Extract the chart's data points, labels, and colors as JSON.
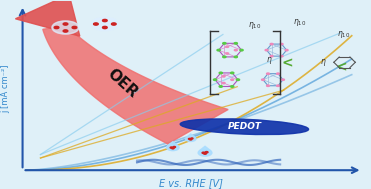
{
  "bg_color": "#dff0f8",
  "axis_color": "#2255aa",
  "ylabel": "j [mA cm⁻²]",
  "xlabel": "E vs. RHE [V]",
  "ylabel_color": "#3388cc",
  "xlabel_color": "#3388cc",
  "oer_text": "OER",
  "pedot_text": "PEDOT",
  "curve1_color": "#66aadd",
  "curve2_color": "#ddaa22",
  "arrow_fill": "#f07070",
  "arrow_head": "#e05050",
  "drop_color": "#aaddff",
  "red_dot": "#cc2222",
  "wave_color": "#3366bb",
  "pedot_bg": "#1133aa",
  "cage_left": "#aa55bb",
  "cage_right": "#6699cc",
  "bracket_color": "#333333",
  "less_color": "#55aa33",
  "mol_color": "#ddeeff",
  "line_gold": "#ddaa22",
  "line_blue": "#88ccee"
}
